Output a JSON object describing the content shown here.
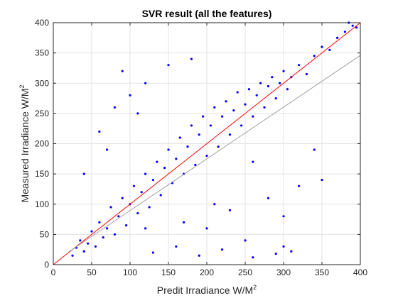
{
  "chart_data": {
    "type": "scatter",
    "title": "SVR result (all the features)",
    "xlabel": "Predit Irradiance W/M",
    "xlabel_sup": "2",
    "ylabel": "Measured Irradiance W/M",
    "ylabel_sup": "2",
    "xlim": [
      0,
      400
    ],
    "ylim": [
      0,
      400
    ],
    "xticks": [
      0,
      50,
      100,
      150,
      200,
      250,
      300,
      350,
      400
    ],
    "yticks": [
      0,
      50,
      100,
      150,
      200,
      250,
      300,
      350,
      400
    ],
    "grid": true,
    "legend": "none",
    "colors": {
      "points": "#0000ff",
      "identity_line": "#ff0000",
      "fit_line": "#a0a0a0",
      "grid": "#e3e3e3",
      "axes": "#262626"
    },
    "reference_lines": [
      {
        "kind": "identity",
        "x": [
          0,
          400
        ],
        "y": [
          0,
          400
        ]
      },
      {
        "kind": "fit",
        "x": [
          20,
          400
        ],
        "y": [
          21,
          346
        ]
      }
    ],
    "series": [
      {
        "points": [
          [
            25,
            15
          ],
          [
            30,
            28
          ],
          [
            35,
            40
          ],
          [
            40,
            22
          ],
          [
            45,
            35
          ],
          [
            50,
            55
          ],
          [
            55,
            30
          ],
          [
            60,
            70
          ],
          [
            65,
            45
          ],
          [
            70,
            60
          ],
          [
            75,
            95
          ],
          [
            80,
            50
          ],
          [
            85,
            80
          ],
          [
            90,
            110
          ],
          [
            95,
            65
          ],
          [
            100,
            100
          ],
          [
            105,
            130
          ],
          [
            110,
            85
          ],
          [
            115,
            120
          ],
          [
            120,
            150
          ],
          [
            125,
            95
          ],
          [
            130,
            140
          ],
          [
            135,
            170
          ],
          [
            140,
            115
          ],
          [
            145,
            160
          ],
          [
            150,
            190
          ],
          [
            155,
            135
          ],
          [
            160,
            175
          ],
          [
            165,
            210
          ],
          [
            170,
            150
          ],
          [
            175,
            195
          ],
          [
            180,
            230
          ],
          [
            185,
            165
          ],
          [
            190,
            215
          ],
          [
            195,
            245
          ],
          [
            200,
            180
          ],
          [
            205,
            230
          ],
          [
            210,
            260
          ],
          [
            215,
            195
          ],
          [
            220,
            245
          ],
          [
            225,
            270
          ],
          [
            230,
            215
          ],
          [
            235,
            255
          ],
          [
            240,
            285
          ],
          [
            245,
            230
          ],
          [
            250,
            265
          ],
          [
            255,
            290
          ],
          [
            260,
            245
          ],
          [
            265,
            280
          ],
          [
            270,
            300
          ],
          [
            275,
            260
          ],
          [
            280,
            295
          ],
          [
            285,
            310
          ],
          [
            290,
            275
          ],
          [
            295,
            300
          ],
          [
            300,
            320
          ],
          [
            305,
            290
          ],
          [
            310,
            310
          ],
          [
            320,
            330
          ],
          [
            330,
            315
          ],
          [
            340,
            345
          ],
          [
            350,
            360
          ],
          [
            360,
            355
          ],
          [
            370,
            375
          ],
          [
            380,
            385
          ],
          [
            390,
            395
          ],
          [
            385,
            400
          ],
          [
            395,
            392
          ],
          [
            40,
            150
          ],
          [
            60,
            220
          ],
          [
            80,
            260
          ],
          [
            100,
            280
          ],
          [
            120,
            300
          ],
          [
            90,
            320
          ],
          [
            150,
            330
          ],
          [
            180,
            340
          ],
          [
            110,
            250
          ],
          [
            70,
            190
          ],
          [
            200,
            60
          ],
          [
            250,
            40
          ],
          [
            300,
            30
          ],
          [
            230,
            90
          ],
          [
            280,
            110
          ],
          [
            320,
            130
          ],
          [
            260,
            170
          ],
          [
            340,
            190
          ],
          [
            300,
            80
          ],
          [
            350,
            140
          ],
          [
            130,
            20
          ],
          [
            160,
            30
          ],
          [
            190,
            15
          ],
          [
            220,
            25
          ],
          [
            260,
            12
          ],
          [
            290,
            18
          ],
          [
            310,
            22
          ],
          [
            120,
            60
          ],
          [
            170,
            70
          ],
          [
            210,
            100
          ]
        ]
      }
    ]
  }
}
